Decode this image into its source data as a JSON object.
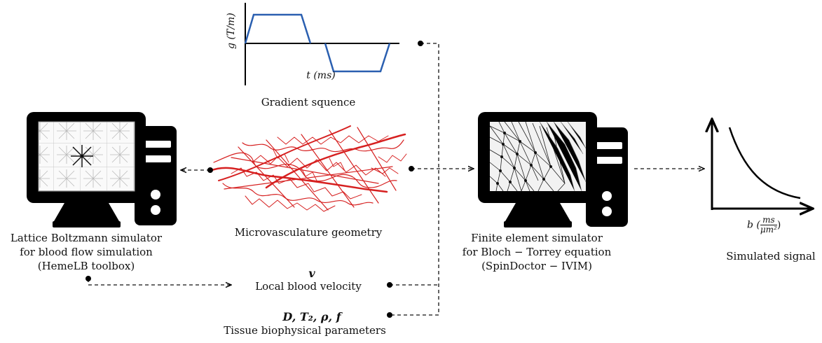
{
  "labels": {
    "gradient": "Gradient squence",
    "gradient_yaxis": "g (T/m)",
    "gradient_xaxis": "t (ms)",
    "lbm": [
      "Lattice Boltzmann simulator",
      "for  blood flow simulation",
      "(HemeLB toolbox)"
    ],
    "micro": "Microvasculature geometry",
    "fem": [
      "Finite element simulator",
      "for Bloch − Torrey equation",
      "(SpinDoctor − IVIM)"
    ],
    "signal": "Simulated signal",
    "signal_xaxis_prefix": "b (",
    "signal_xaxis_num": "ms",
    "signal_xaxis_den": "μm²",
    "signal_xaxis_suffix": ")",
    "velocity_symbol": "v",
    "velocity": "Local blood velocity",
    "tissue_symbols": "D, T₂, ρ, f",
    "tissue": "Tissue biophysical parameters"
  },
  "colors": {
    "vessel": "#d62020",
    "gradient_line": "#2a5fb0",
    "ink": "#000000"
  },
  "icons": [
    "computer-icon",
    "computer-icon",
    "vessel-network-image",
    "signal-decay-plot"
  ]
}
